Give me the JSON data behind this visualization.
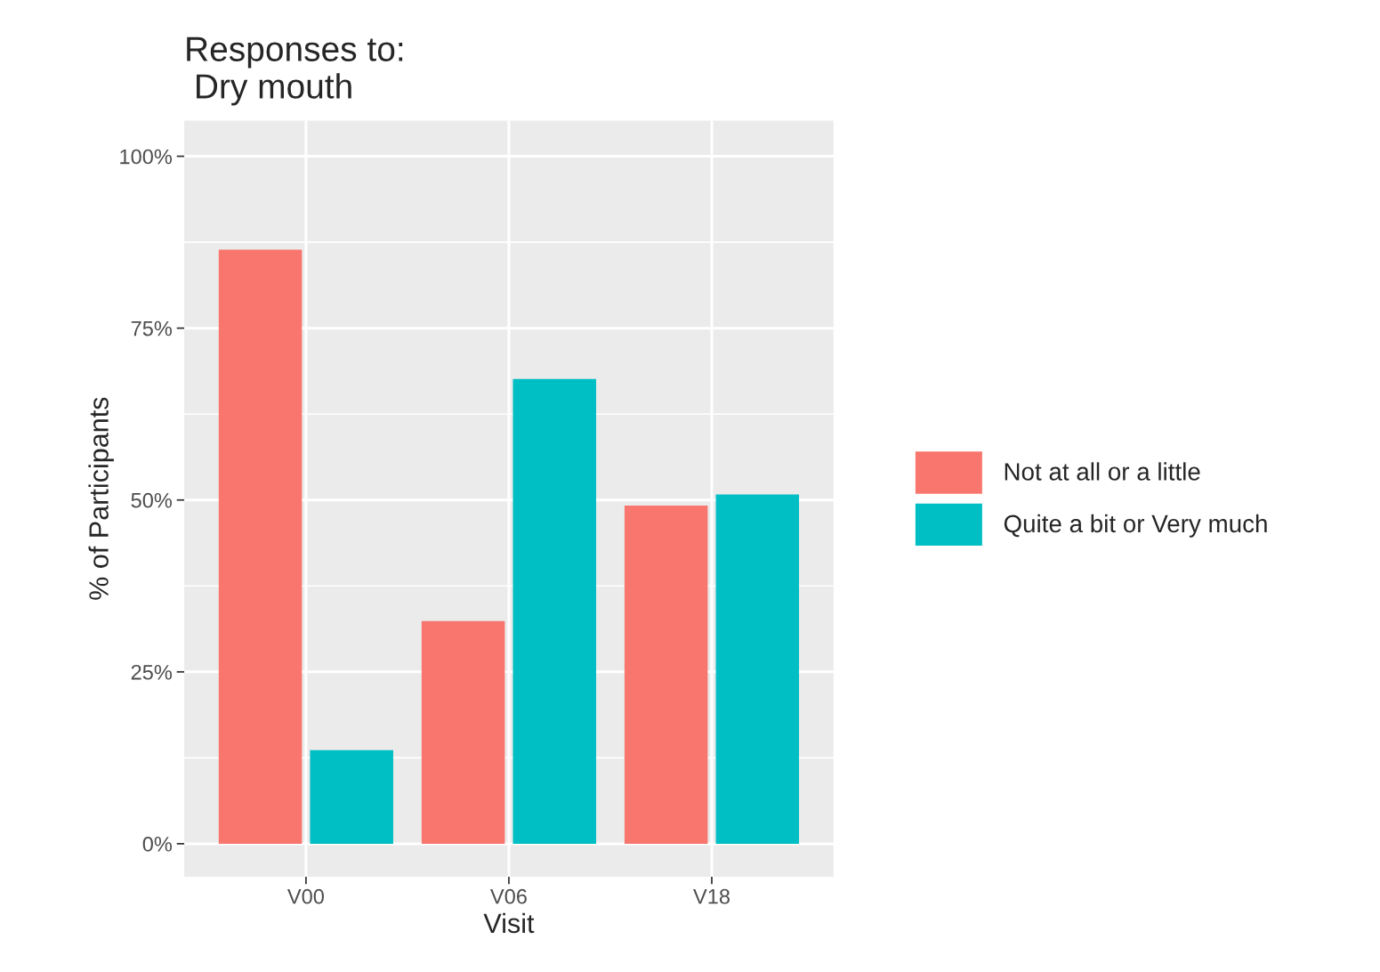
{
  "chart_data": {
    "type": "bar",
    "title": "Responses to:\n Dry mouth",
    "xlabel": "Visit",
    "ylabel": "% of Participants",
    "categories": [
      "V00",
      "V06",
      "V18"
    ],
    "series": [
      {
        "name": "Not at all or a little",
        "color": "#f8766d",
        "values": [
          86.4,
          32.4,
          49.2
        ]
      },
      {
        "name": "Quite a bit or Very much",
        "color": "#00bfc4",
        "values": [
          13.6,
          67.6,
          50.8
        ]
      }
    ],
    "ylim": [
      -4.8,
      105.2
    ],
    "yticks": [
      {
        "value": 0,
        "label": "0%"
      },
      {
        "value": 25,
        "label": "25%"
      },
      {
        "value": 50,
        "label": "50%"
      },
      {
        "value": 75,
        "label": "75%"
      },
      {
        "value": 100,
        "label": "100%"
      }
    ],
    "grid": true,
    "legend": "right"
  }
}
